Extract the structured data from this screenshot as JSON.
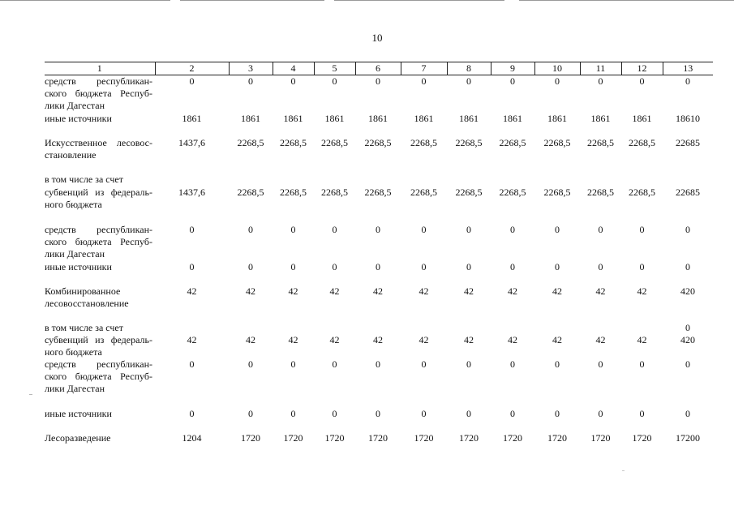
{
  "page_number": "10",
  "header": [
    "1",
    "2",
    "3",
    "4",
    "5",
    "6",
    "7",
    "8",
    "9",
    "10",
    "11",
    "12",
    "13"
  ],
  "rows": [
    {
      "label": "средств республикан­ского бюджета Респуб­лики Дагестан",
      "values": [
        "0",
        "0",
        "0",
        "0",
        "0",
        "0",
        "0",
        "0",
        "0",
        "0",
        "0",
        "0"
      ]
    },
    {
      "label": "иные источники",
      "values": [
        "1861",
        "1861",
        "1861",
        "1861",
        "1861",
        "1861",
        "1861",
        "1861",
        "1861",
        "1861",
        "1861",
        "18610"
      ]
    },
    {
      "label": "Искусственное лесовос­становление",
      "values": [
        "1437,6",
        "2268,5",
        "2268,5",
        "2268,5",
        "2268,5",
        "2268,5",
        "2268,5",
        "2268,5",
        "2268,5",
        "2268,5",
        "2268,5",
        "22685"
      ]
    },
    {
      "label": "в том числе за счет",
      "values": [
        "",
        "",
        "",
        "",
        "",
        "",
        "",
        "",
        "",
        "",
        "",
        ""
      ]
    },
    {
      "label": "субвенций из федераль­ного бюджета",
      "values": [
        "1437,6",
        "2268,5",
        "2268,5",
        "2268,5",
        "2268,5",
        "2268,5",
        "2268,5",
        "2268,5",
        "2268,5",
        "2268,5",
        "2268,5",
        "22685"
      ]
    },
    {
      "label": "средств республикан­ского бюджета Респуб­лики Дагестан",
      "values": [
        "0",
        "0",
        "0",
        "0",
        "0",
        "0",
        "0",
        "0",
        "0",
        "0",
        "0",
        "0"
      ]
    },
    {
      "label": "иные источники",
      "values": [
        "0",
        "0",
        "0",
        "0",
        "0",
        "0",
        "0",
        "0",
        "0",
        "0",
        "0",
        "0"
      ]
    },
    {
      "label": "Комбинированное лесовосстановление",
      "values": [
        "42",
        "42",
        "42",
        "42",
        "42",
        "42",
        "42",
        "42",
        "42",
        "42",
        "42",
        "420"
      ]
    },
    {
      "label": "в том числе за счет",
      "values": [
        "",
        "",
        "",
        "",
        "",
        "",
        "",
        "",
        "",
        "",
        "",
        "0"
      ]
    },
    {
      "label": "субвенций из федераль­ного бюджета",
      "values": [
        "42",
        "42",
        "42",
        "42",
        "42",
        "42",
        "42",
        "42",
        "42",
        "42",
        "42",
        "420"
      ]
    },
    {
      "label": "средств республикан­ского бюджета Респуб­лики Дагестан",
      "values": [
        "0",
        "0",
        "0",
        "0",
        "0",
        "0",
        "0",
        "0",
        "0",
        "0",
        "0",
        "0"
      ]
    },
    {
      "label": "иные источники",
      "values": [
        "0",
        "0",
        "0",
        "0",
        "0",
        "0",
        "0",
        "0",
        "0",
        "0",
        "0",
        "0"
      ]
    },
    {
      "label": "Лесоразведение",
      "values": [
        "1204",
        "1720",
        "1720",
        "1720",
        "1720",
        "1720",
        "1720",
        "1720",
        "1720",
        "1720",
        "1720",
        "17200"
      ]
    }
  ]
}
